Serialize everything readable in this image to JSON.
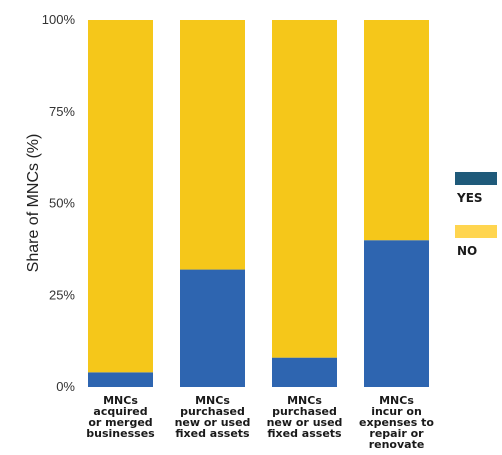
{
  "chart_data": {
    "type": "bar",
    "stacked": true,
    "ylabel": "Share of MNCs (%)",
    "ylim": [
      0,
      100
    ],
    "yticks": [
      {
        "value": 0,
        "label": "0%"
      },
      {
        "value": 25,
        "label": "25%"
      },
      {
        "value": 50,
        "label": "50%"
      },
      {
        "value": 75,
        "label": "75%"
      },
      {
        "value": 100,
        "label": "100%"
      }
    ],
    "categories": [
      [
        "MNCs",
        "acquired",
        "or merged",
        "businesses"
      ],
      [
        "MNCs",
        "purchased",
        "new or used",
        "fixed assets"
      ],
      [
        "MNCs",
        "purchased",
        "new or used",
        "fixed assets"
      ],
      [
        "MNCs",
        "incur on",
        "expenses to",
        "repair or",
        "renovate"
      ]
    ],
    "series": [
      {
        "name": "YES",
        "color": "#2e65b0",
        "values": [
          4,
          32,
          8,
          40
        ]
      },
      {
        "name": "NO",
        "color": "#f5c71a",
        "values": [
          96,
          68,
          92,
          60
        ]
      }
    ],
    "legend": {
      "position": "right",
      "items": [
        {
          "label": "YES",
          "color": "#1f5a7a"
        },
        {
          "label": "NO",
          "color": "#ffd54f"
        }
      ]
    },
    "grid": false
  }
}
